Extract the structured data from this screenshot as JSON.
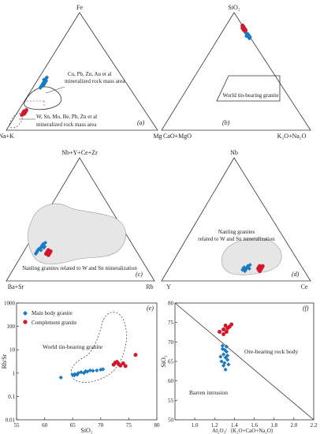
{
  "chart_data": [
    {
      "panel": "(a)",
      "type": "ternary",
      "apices": {
        "top": "Fe",
        "left": "Na+K",
        "right": "Mg"
      },
      "annotations": [
        "Cu, Pb, Zn, Au et al",
        "mineralized rock mass area",
        "W, Sn, Mo, Be, Pb, Zn et al",
        "mineralized rock mass area"
      ],
      "series": [
        {
          "name": "Main body granite",
          "color": "#1a7bc1",
          "marker": "diamond",
          "points": [
            [
              0.41,
              0.54,
              0.05
            ],
            [
              0.4,
              0.55,
              0.05
            ],
            [
              0.42,
              0.53,
              0.05
            ],
            [
              0.43,
              0.53,
              0.04
            ],
            [
              0.39,
              0.56,
              0.05
            ],
            [
              0.38,
              0.57,
              0.05
            ],
            [
              0.44,
              0.51,
              0.05
            ],
            [
              0.41,
              0.53,
              0.06
            ],
            [
              0.4,
              0.54,
              0.06
            ],
            [
              0.37,
              0.58,
              0.05
            ],
            [
              0.36,
              0.59,
              0.05
            ],
            [
              0.42,
              0.52,
              0.06
            ],
            [
              0.45,
              0.5,
              0.05
            ],
            [
              0.39,
              0.55,
              0.06
            ],
            [
              0.43,
              0.52,
              0.05
            ],
            [
              0.38,
              0.56,
              0.06
            ]
          ]
        },
        {
          "name": "Complement granite",
          "color": "#d0192a",
          "marker": "circle",
          "points": [
            [
              0.15,
              0.8,
              0.05
            ],
            [
              0.16,
              0.79,
              0.05
            ],
            [
              0.14,
              0.81,
              0.05
            ],
            [
              0.17,
              0.78,
              0.05
            ],
            [
              0.13,
              0.83,
              0.04
            ],
            [
              0.15,
              0.81,
              0.04
            ],
            [
              0.16,
              0.8,
              0.04
            ]
          ]
        }
      ]
    },
    {
      "panel": "(b)",
      "type": "ternary",
      "apices": {
        "top": "SiO₂",
        "left": "CaO+MgO",
        "right": "K₂O+Na₂O"
      },
      "annotations": [
        "World tin-bearing granite"
      ],
      "series": [
        {
          "name": "Main body granite",
          "color": "#1a7bc1",
          "marker": "diamond",
          "points": [
            [
              0.79,
              0.01,
              0.2
            ],
            [
              0.8,
              0.01,
              0.19
            ],
            [
              0.81,
              0.01,
              0.18
            ],
            [
              0.8,
              0.0,
              0.2
            ],
            [
              0.82,
              0.01,
              0.17
            ],
            [
              0.79,
              0.0,
              0.21
            ],
            [
              0.78,
              0.01,
              0.21
            ],
            [
              0.81,
              0.0,
              0.19
            ],
            [
              0.8,
              0.02,
              0.18
            ],
            [
              0.83,
              0.01,
              0.16
            ],
            [
              0.82,
              0.0,
              0.18
            ]
          ]
        },
        {
          "name": "Complement granite",
          "color": "#d0192a",
          "marker": "circle",
          "points": [
            [
              0.86,
              0.0,
              0.14
            ],
            [
              0.87,
              0.0,
              0.13
            ],
            [
              0.85,
              0.0,
              0.15
            ],
            [
              0.88,
              0.0,
              0.12
            ],
            [
              0.86,
              0.01,
              0.13
            ],
            [
              0.87,
              0.01,
              0.12
            ],
            [
              0.89,
              0.0,
              0.11
            ],
            [
              0.85,
              0.01,
              0.14
            ]
          ]
        }
      ]
    },
    {
      "panel": "(c)",
      "type": "ternary",
      "apices": {
        "top": "Nb+Y+Ce+Zr",
        "left": "Ba+Sr",
        "right": "Rb"
      },
      "annotations": [
        "Nanling granites related to W and Sn mineralization"
      ],
      "series": [
        {
          "name": "Main body granite",
          "color": "#1a7bc1",
          "marker": "diamond",
          "points": [
            [
              0.26,
              0.65,
              0.09
            ],
            [
              0.28,
              0.62,
              0.1
            ],
            [
              0.25,
              0.66,
              0.09
            ],
            [
              0.3,
              0.6,
              0.1
            ],
            [
              0.27,
              0.63,
              0.1
            ],
            [
              0.24,
              0.67,
              0.09
            ],
            [
              0.29,
              0.61,
              0.1
            ],
            [
              0.31,
              0.58,
              0.11
            ],
            [
              0.26,
              0.64,
              0.1
            ],
            [
              0.23,
              0.68,
              0.09
            ],
            [
              0.28,
              0.6,
              0.12
            ],
            [
              0.25,
              0.64,
              0.11
            ],
            [
              0.22,
              0.69,
              0.09
            ],
            [
              0.27,
              0.61,
              0.12
            ]
          ]
        },
        {
          "name": "Complement granite",
          "color": "#d0192a",
          "marker": "circle",
          "points": [
            [
              0.24,
              0.6,
              0.16
            ],
            [
              0.23,
              0.61,
              0.16
            ],
            [
              0.25,
              0.59,
              0.16
            ],
            [
              0.22,
              0.62,
              0.16
            ],
            [
              0.24,
              0.58,
              0.18
            ],
            [
              0.23,
              0.59,
              0.18
            ],
            [
              0.21,
              0.61,
              0.18
            ],
            [
              0.22,
              0.6,
              0.18
            ]
          ]
        }
      ]
    },
    {
      "panel": "(d)",
      "type": "ternary",
      "apices": {
        "top": "Nb",
        "left": "Y",
        "right": "Ce"
      },
      "annotations": [
        "Nanling granites",
        "related to W and Sn mineralization"
      ],
      "series": [
        {
          "name": "Main body granite",
          "color": "#1a7bc1",
          "marker": "diamond",
          "points": [
            [
              0.1,
              0.4,
              0.5
            ],
            [
              0.09,
              0.41,
              0.5
            ],
            [
              0.11,
              0.39,
              0.5
            ],
            [
              0.1,
              0.38,
              0.52
            ],
            [
              0.09,
              0.39,
              0.52
            ],
            [
              0.11,
              0.37,
              0.52
            ],
            [
              0.1,
              0.36,
              0.54
            ],
            [
              0.12,
              0.36,
              0.52
            ],
            [
              0.08,
              0.4,
              0.52
            ],
            [
              0.13,
              0.34,
              0.53
            ]
          ]
        },
        {
          "name": "Complement granite",
          "color": "#d0192a",
          "marker": "circle",
          "points": [
            [
              0.11,
              0.29,
              0.6
            ],
            [
              0.1,
              0.3,
              0.6
            ],
            [
              0.12,
              0.28,
              0.6
            ],
            [
              0.09,
              0.3,
              0.61
            ],
            [
              0.11,
              0.27,
              0.62
            ],
            [
              0.1,
              0.28,
              0.62
            ],
            [
              0.09,
              0.29,
              0.62
            ],
            [
              0.12,
              0.26,
              0.62
            ],
            [
              0.08,
              0.3,
              0.62
            ]
          ]
        }
      ]
    },
    {
      "panel": "(e)",
      "type": "scatter",
      "xlabel": "SiO₂",
      "ylabel": "Rb/Sr",
      "xlim": [
        55,
        80
      ],
      "ylim": [
        0.01,
        1000
      ],
      "yscale": "log",
      "xticks": [
        "55",
        "60",
        "65",
        "70",
        "75",
        "80"
      ],
      "yticks": [
        "0.01",
        "0.1",
        "1",
        "10",
        "100",
        "1000"
      ],
      "legend": {
        "position": "top-left",
        "entries": [
          "Main body granite",
          "Complement granite"
        ]
      },
      "annotations": [
        "World tin-bearing granite"
      ],
      "series": [
        {
          "name": "Main body granite",
          "color": "#1a7bc1",
          "marker": "diamond",
          "points": [
            [
              62.9,
              0.65
            ],
            [
              65.0,
              0.85
            ],
            [
              65.4,
              0.9
            ],
            [
              65.8,
              0.85
            ],
            [
              66.0,
              1.0
            ],
            [
              66.5,
              1.1
            ],
            [
              67.0,
              1.0
            ],
            [
              67.3,
              1.2
            ],
            [
              67.6,
              1.15
            ],
            [
              68.1,
              1.3
            ],
            [
              68.6,
              1.25
            ],
            [
              69.3,
              1.3
            ],
            [
              70.0,
              1.4
            ],
            [
              70.4,
              1.45
            ],
            [
              65.3,
              0.8
            ]
          ]
        },
        {
          "name": "Complement granite",
          "color": "#d0192a",
          "marker": "circle",
          "points": [
            [
              72.3,
              2.3
            ],
            [
              72.6,
              2.8
            ],
            [
              72.9,
              3.0
            ],
            [
              73.2,
              2.4
            ],
            [
              73.5,
              2.1
            ],
            [
              74.0,
              2.6
            ],
            [
              74.4,
              2.0
            ],
            [
              76.2,
              6.0
            ]
          ]
        }
      ]
    },
    {
      "panel": "(f)",
      "type": "scatter",
      "xlabel": "Al₂O₃/（K₂O+CaO+Na₂O）",
      "ylabel": "SiO₂",
      "xlim": [
        0.8,
        2.2
      ],
      "ylim": [
        50,
        80
      ],
      "xticks": [
        "1.0",
        "1.2",
        "1.4",
        "1.6",
        "1.8",
        "2.0",
        "2.2"
      ],
      "yticks": [
        "50",
        "55",
        "60",
        "65",
        "70",
        "75",
        "80"
      ],
      "annotations": [
        "Ore-bearing rock body",
        "Barren intrusion"
      ],
      "series": [
        {
          "name": "Main body granite",
          "color": "#1a7bc1",
          "marker": "diamond",
          "points": [
            [
              1.28,
              69
            ],
            [
              1.3,
              68
            ],
            [
              1.32,
              67.5
            ],
            [
              1.29,
              66.8
            ],
            [
              1.31,
              66
            ],
            [
              1.33,
              65.4
            ],
            [
              1.27,
              65
            ],
            [
              1.3,
              64.6
            ],
            [
              1.34,
              64.2
            ],
            [
              1.28,
              68.2
            ],
            [
              1.32,
              68.8
            ],
            [
              1.29,
              63.9
            ],
            [
              1.31,
              62.9
            ],
            [
              1.33,
              66.5
            ],
            [
              1.26,
              66.2
            ]
          ]
        },
        {
          "name": "Complement granite",
          "color": "#d0192a",
          "marker": "circle",
          "points": [
            [
              1.25,
              72.6
            ],
            [
              1.29,
              73.2
            ],
            [
              1.31,
              74.2
            ],
            [
              1.33,
              73.5
            ],
            [
              1.35,
              73.9
            ],
            [
              1.37,
              74.5
            ],
            [
              1.29,
              72.0
            ],
            [
              1.32,
              72.6
            ]
          ]
        }
      ]
    }
  ]
}
